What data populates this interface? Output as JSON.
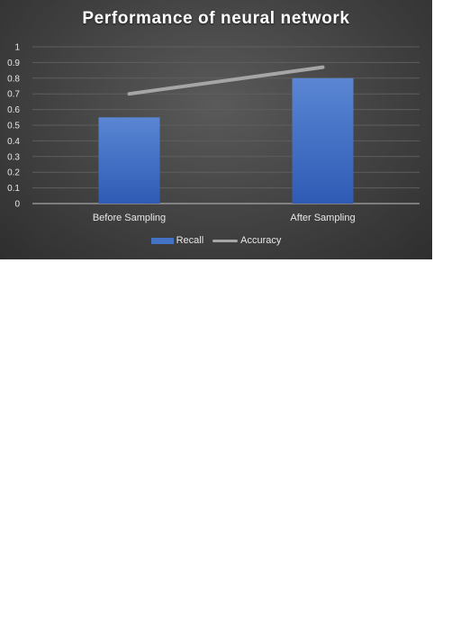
{
  "chart_data": {
    "type": "bar",
    "title": "Performance  of neural network",
    "categories": [
      "Before Sampling",
      "After Sampling"
    ],
    "series": [
      {
        "name": "Recall",
        "kind": "bar",
        "values": [
          0.55,
          0.8
        ],
        "color": "#4472c4"
      },
      {
        "name": "Accuracy",
        "kind": "line",
        "values": [
          0.7,
          0.87
        ],
        "color": "#a6a6a6"
      }
    ],
    "yticks": [
      "0",
      "0.1",
      "0.2",
      "0.3",
      "0.4",
      "0.5",
      "0.6",
      "0.7",
      "0.8",
      "0.9",
      "1"
    ],
    "ylim": [
      0,
      1
    ],
    "grid": true,
    "legend_position": "bottom"
  }
}
